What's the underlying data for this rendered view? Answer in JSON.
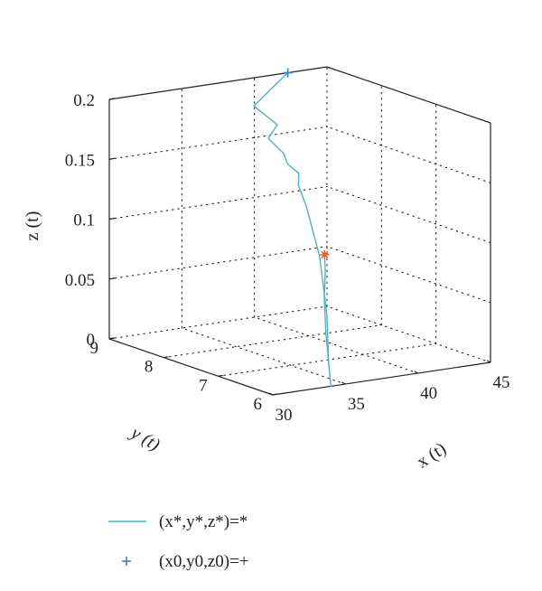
{
  "chart_data": {
    "type": "line",
    "subtype": "3d",
    "axes": {
      "x": {
        "label": "x (t)",
        "ticks": [
          30,
          35,
          40,
          45
        ],
        "range": [
          30,
          45
        ]
      },
      "y": {
        "label": "y (t)",
        "ticks": [
          6,
          7,
          8,
          9
        ],
        "range": [
          6,
          9
        ]
      },
      "z": {
        "label": "z (t)",
        "ticks": [
          0,
          0.05,
          0.1,
          0.15,
          0.2
        ],
        "tick_labels": [
          "0",
          "0.05",
          "0.1",
          "0.15",
          "0.2"
        ],
        "range": [
          0,
          0.2
        ]
      }
    },
    "grid": true,
    "box": true,
    "series": [
      {
        "name": "(x*,y*,z*)=*",
        "color": "#4fb3bf",
        "style": "line",
        "points": [
          [
            42.3,
            9.0,
            0.2
          ],
          [
            41.6,
            9.0,
            0.193
          ],
          [
            37.7,
            8.4,
            0.19
          ],
          [
            38.2,
            8.1,
            0.178
          ],
          [
            37.2,
            8.0,
            0.17
          ],
          [
            37.5,
            7.8,
            0.16
          ],
          [
            37.4,
            7.7,
            0.153
          ],
          [
            37.8,
            7.6,
            0.146
          ],
          [
            37.4,
            7.5,
            0.138
          ],
          [
            37.2,
            7.3,
            0.124
          ],
          [
            36.6,
            6.9,
            0.09
          ],
          [
            35.6,
            6.5,
            0.05
          ],
          [
            34.6,
            6.2,
            0.015
          ],
          [
            34.0,
            6.0,
            0.0
          ],
          [
            34.8,
            6.25,
            0.013
          ],
          [
            35.9,
            6.6,
            0.033
          ],
          [
            37.3,
            7.0,
            0.052
          ],
          [
            38.5,
            7.3,
            0.068
          ],
          [
            39.2,
            7.5,
            0.077
          ]
        ]
      },
      {
        "name": "(x*,y*,z*)=*",
        "color": "#e4632d",
        "style": "marker",
        "marker": "*",
        "points": [
          [
            39.2,
            7.5,
            0.077
          ]
        ]
      },
      {
        "name": "(x0,y0,z0)=+",
        "color": "#3f7fc2",
        "style": "marker",
        "marker": "+",
        "points": [
          [
            42.3,
            9.0,
            0.2
          ]
        ]
      }
    ],
    "legend": {
      "placement": "bottom-left",
      "entries": [
        {
          "label": "(x*,y*,z*)=*",
          "symbol": "line",
          "color": "#4fb3bf"
        },
        {
          "label": "(x0,y0,z0)=+",
          "symbol": "plus",
          "color": "#3f7fc2"
        }
      ]
    }
  }
}
